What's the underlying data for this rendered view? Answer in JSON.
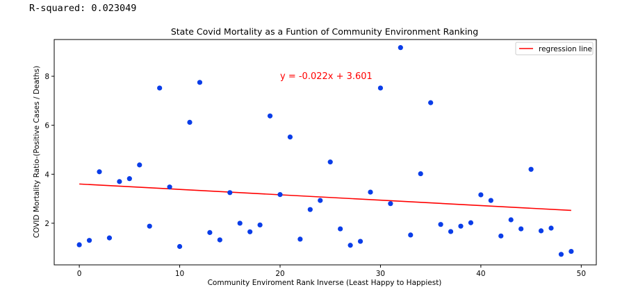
{
  "header": {
    "r_squared_text": "R-squared: 0.023049"
  },
  "colors": {
    "points": "#0a3de8",
    "regression": "#ff0000",
    "equation": "#ff0000"
  },
  "chart_data": {
    "type": "scatter",
    "title": "State Covid Mortality as a Funtion of Community Environment Ranking",
    "xlabel": "Community Enviroment Rank Inverse (Least Happy to Happiest)",
    "ylabel": "COVID Mortality Ratio-(Positive Cases / Deaths)",
    "xlim": [
      -2.5,
      51.5
    ],
    "ylim": [
      0.3,
      9.5
    ],
    "xticks": [
      0,
      10,
      20,
      30,
      40,
      50
    ],
    "yticks": [
      2,
      4,
      6,
      8
    ],
    "grid": false,
    "legend": {
      "position": "top-right",
      "entries": [
        "regression line"
      ]
    },
    "regression": {
      "slope": -0.022,
      "intercept": 3.601,
      "x_range": [
        0,
        49
      ],
      "equation_label": "y = -0.022x + 3.601"
    },
    "points": [
      {
        "x": 0,
        "y": 1.12
      },
      {
        "x": 1,
        "y": 1.3
      },
      {
        "x": 2,
        "y": 4.1
      },
      {
        "x": 3,
        "y": 1.4
      },
      {
        "x": 4,
        "y": 3.7
      },
      {
        "x": 5,
        "y": 3.82
      },
      {
        "x": 6,
        "y": 4.38
      },
      {
        "x": 7,
        "y": 1.88
      },
      {
        "x": 8,
        "y": 7.52
      },
      {
        "x": 9,
        "y": 3.48
      },
      {
        "x": 10,
        "y": 1.05
      },
      {
        "x": 11,
        "y": 6.12
      },
      {
        "x": 12,
        "y": 7.75
      },
      {
        "x": 13,
        "y": 1.62
      },
      {
        "x": 14,
        "y": 1.32
      },
      {
        "x": 15,
        "y": 3.25
      },
      {
        "x": 16,
        "y": 2.0
      },
      {
        "x": 17,
        "y": 1.65
      },
      {
        "x": 18,
        "y": 1.93
      },
      {
        "x": 19,
        "y": 6.38
      },
      {
        "x": 20,
        "y": 3.17
      },
      {
        "x": 21,
        "y": 5.52
      },
      {
        "x": 22,
        "y": 1.35
      },
      {
        "x": 23,
        "y": 2.56
      },
      {
        "x": 24,
        "y": 2.93
      },
      {
        "x": 25,
        "y": 4.5
      },
      {
        "x": 26,
        "y": 1.77
      },
      {
        "x": 27,
        "y": 1.1
      },
      {
        "x": 28,
        "y": 1.26
      },
      {
        "x": 29,
        "y": 3.27
      },
      {
        "x": 30,
        "y": 7.52
      },
      {
        "x": 31,
        "y": 2.8
      },
      {
        "x": 32,
        "y": 9.17
      },
      {
        "x": 33,
        "y": 1.52
      },
      {
        "x": 34,
        "y": 4.02
      },
      {
        "x": 35,
        "y": 6.92
      },
      {
        "x": 36,
        "y": 1.95
      },
      {
        "x": 37,
        "y": 1.66
      },
      {
        "x": 38,
        "y": 1.88
      },
      {
        "x": 39,
        "y": 2.02
      },
      {
        "x": 40,
        "y": 3.16
      },
      {
        "x": 41,
        "y": 2.93
      },
      {
        "x": 42,
        "y": 1.48
      },
      {
        "x": 43,
        "y": 2.14
      },
      {
        "x": 44,
        "y": 1.77
      },
      {
        "x": 45,
        "y": 4.2
      },
      {
        "x": 46,
        "y": 1.69
      },
      {
        "x": 47,
        "y": 1.8
      },
      {
        "x": 48,
        "y": 0.73
      },
      {
        "x": 49,
        "y": 0.85
      }
    ]
  }
}
